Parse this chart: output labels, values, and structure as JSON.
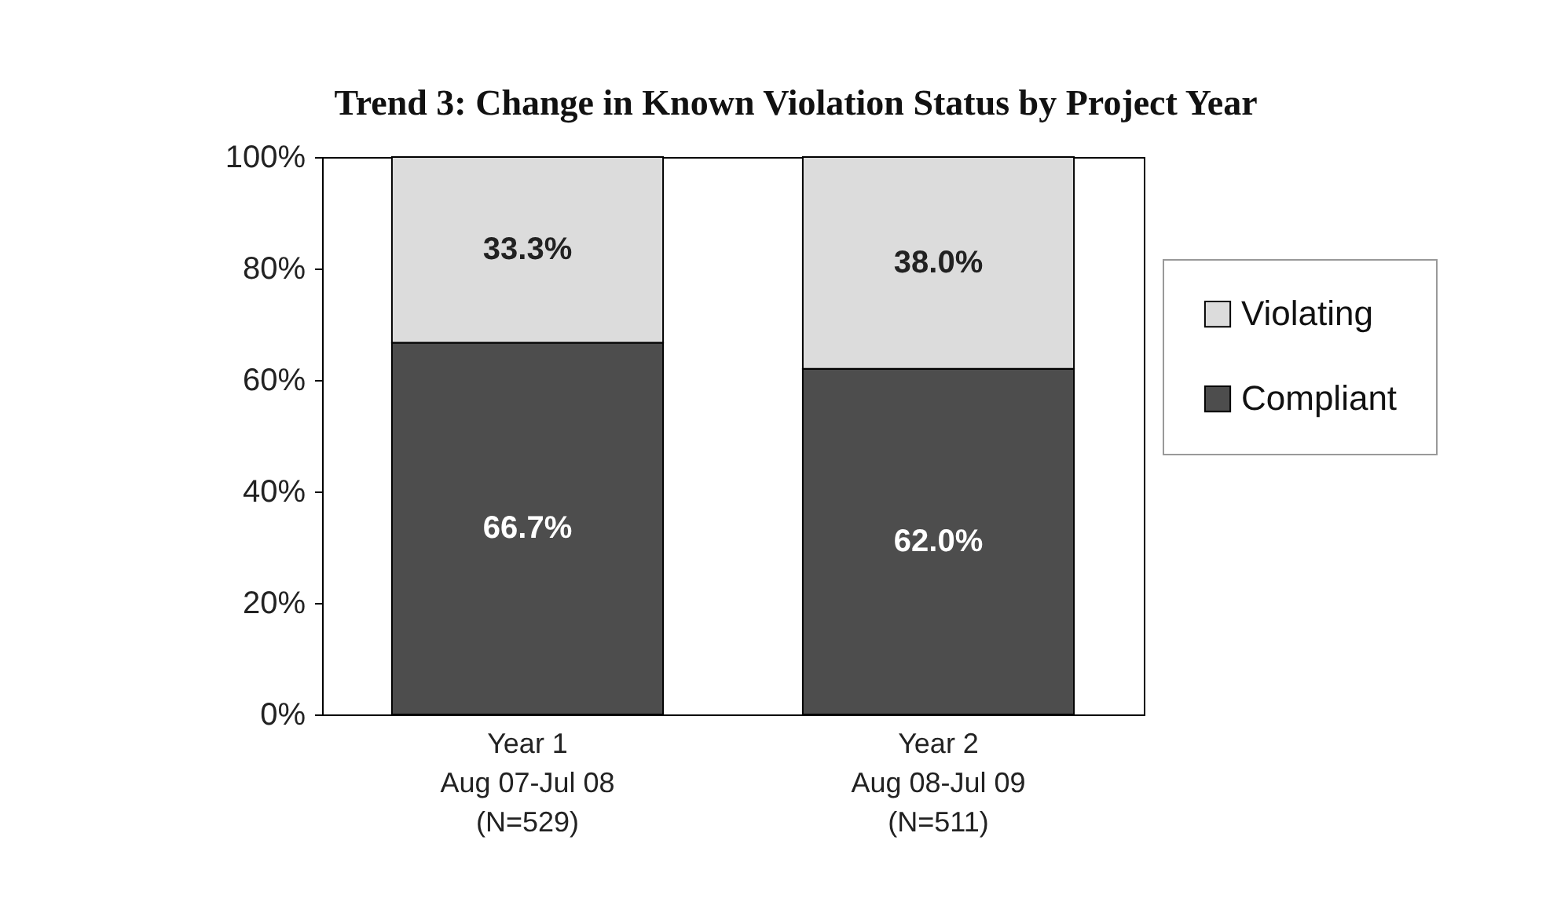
{
  "chart_data": {
    "type": "bar",
    "title": "Trend 3:  Change in Known Violation Status by Project Year",
    "categories": [
      "Year 1\nAug 07-Jul 08\n(N=529)",
      "Year 2\nAug 08-Jul 09\n(N=511)"
    ],
    "series": [
      {
        "name": "Compliant",
        "color": "#4d4d4d",
        "values": [
          66.7,
          62.0
        ],
        "value_labels": [
          "66.7%",
          "62.0%"
        ]
      },
      {
        "name": "Violating",
        "color": "#dcdcdc",
        "values": [
          33.3,
          38.0
        ],
        "value_labels": [
          "33.3%",
          "38.0%"
        ]
      }
    ],
    "stacked": true,
    "ylim": [
      0,
      100
    ],
    "yticks": [
      {
        "value": 0,
        "label": "0%"
      },
      {
        "value": 20,
        "label": "20%"
      },
      {
        "value": 40,
        "label": "40%"
      },
      {
        "value": 60,
        "label": "60%"
      },
      {
        "value": 80,
        "label": "80%"
      },
      {
        "value": 100,
        "label": "100%"
      }
    ],
    "grid": false,
    "legend": "right"
  }
}
